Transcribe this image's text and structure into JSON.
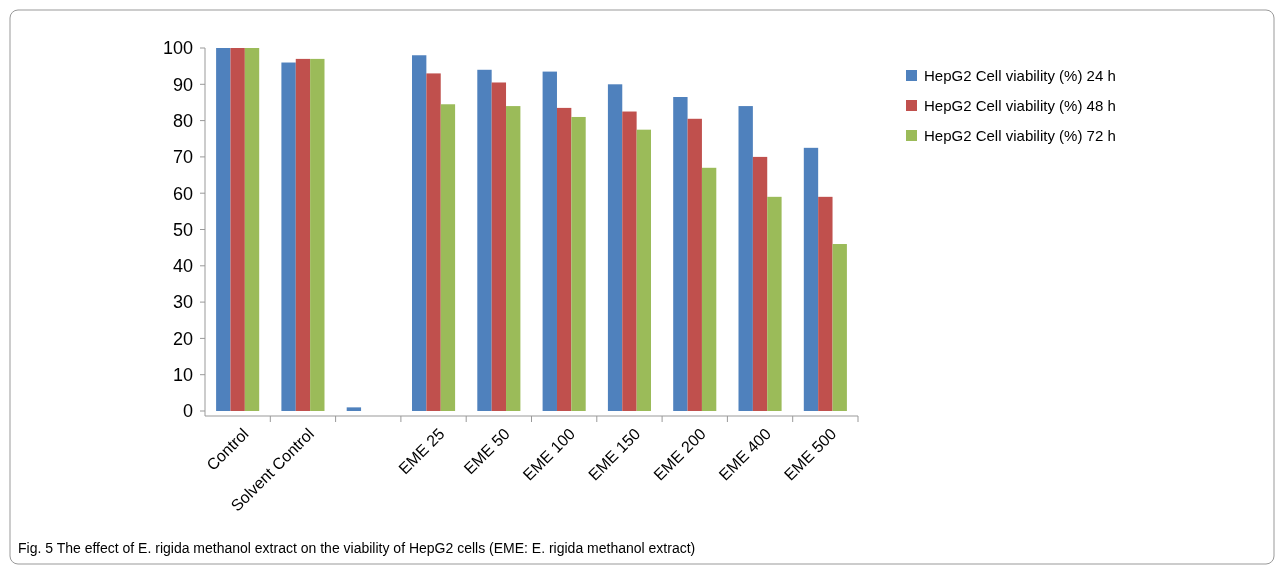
{
  "chart_data": {
    "type": "bar",
    "categories": [
      "Control",
      "Solvent Control",
      null,
      "EME 25",
      "EME 50",
      "EME 100",
      "EME 150",
      "EME 200",
      "EME 400",
      "EME 500"
    ],
    "series": [
      {
        "name": "HepG2 Cell viability (%) 24 h",
        "color": "#4f81bd",
        "values": [
          100,
          96,
          1,
          98,
          94,
          93.5,
          90,
          86.5,
          84,
          72.5
        ]
      },
      {
        "name": "HepG2 Cell viability (%) 48 h",
        "color": "#c0504d",
        "values": [
          100,
          97,
          0,
          93,
          90.5,
          83.5,
          82.5,
          80.5,
          70,
          59
        ]
      },
      {
        "name": "HepG2 Cell viability (%) 72 h",
        "color": "#9bbb59",
        "values": [
          100,
          97,
          0,
          84.5,
          84,
          81,
          77.5,
          67,
          59,
          46
        ]
      }
    ],
    "ylim": [
      0,
      100
    ],
    "yticks": [
      0,
      10,
      20,
      30,
      40,
      50,
      60,
      70,
      80,
      90,
      100
    ],
    "grid": false,
    "legend": "top right",
    "annotations": [
      "Fig. 5 The effect of E. rigida methanol extract on the viability of HepG2 cells (EME: E. rigida methanol extract)"
    ]
  }
}
